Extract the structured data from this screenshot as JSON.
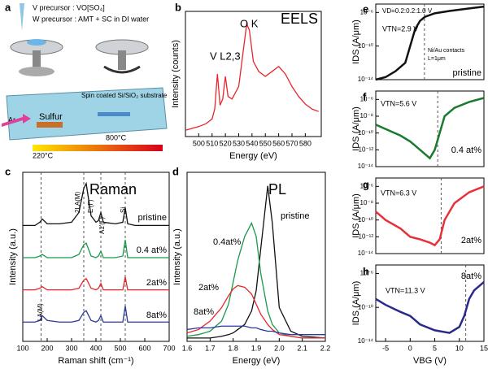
{
  "schematic": {
    "label": "a",
    "v_precursor": "V precursor : VO[SO₄]",
    "w_precursor": "W precursor : AMT + SC in DI water",
    "substrate": "Spin coated Si/SiO₂ substrate",
    "gas": "Ar",
    "sulfur": "Sulfur",
    "t_low": "220°C",
    "t_high": "800°C"
  },
  "chart_data": [
    {
      "type": "line",
      "label": "b",
      "title": "EELS",
      "xlabel": "Energy (eV)",
      "ylabel": "Intensity (counts)",
      "annotations": [
        "V L2,3",
        "O K"
      ],
      "x": [
        490,
        500,
        505,
        510,
        512,
        514,
        516,
        518,
        520,
        522,
        525,
        530,
        533,
        536,
        538,
        541,
        545,
        550,
        555,
        560,
        565,
        570,
        575,
        580,
        585,
        590
      ],
      "xlim": [
        490,
        592
      ],
      "xticks": [
        500,
        510,
        520,
        530,
        540,
        550,
        560,
        570,
        580
      ],
      "ylim": [
        0,
        100
      ],
      "series": [
        {
          "color": "#e8262b",
          "values": [
            5,
            8,
            10,
            14,
            22,
            50,
            25,
            30,
            48,
            32,
            30,
            40,
            65,
            90,
            85,
            60,
            52,
            48,
            52,
            56,
            50,
            40,
            32,
            26,
            22,
            20
          ]
        }
      ]
    },
    {
      "type": "line",
      "label": "c",
      "title": "Raman",
      "xlabel": "Raman shift (cm⁻¹)",
      "ylabel": "Intensity (a.u.)",
      "annotations": [
        "2LA(M)",
        "E'(Γ)",
        "A1'(Γ)",
        "Si",
        "LA(M)"
      ],
      "x": [
        100,
        150,
        170,
        180,
        200,
        250,
        300,
        330,
        350,
        360,
        380,
        400,
        410,
        420,
        430,
        480,
        510,
        520,
        530,
        560,
        600,
        650,
        700
      ],
      "xlim": [
        100,
        700
      ],
      "xticks": [
        100,
        200,
        300,
        400,
        500,
        600,
        700
      ],
      "ylim": [
        0,
        105
      ],
      "vlines": [
        175,
        350,
        420,
        520
      ],
      "series": [
        {
          "name": "pristine",
          "color": "#111111",
          "values": [
            72,
            72,
            74,
            76,
            73,
            73,
            74,
            80,
            95,
            98,
            78,
            74,
            75,
            80,
            74,
            73,
            74,
            83,
            73,
            72,
            72,
            72,
            72
          ]
        },
        {
          "name": "0.4 at%",
          "color": "#1a9a4a",
          "values": [
            52,
            52,
            53,
            54,
            52,
            52,
            52,
            54,
            60,
            61,
            53,
            52,
            53,
            56,
            52,
            52,
            53,
            63,
            52,
            52,
            52,
            52,
            52
          ]
        },
        {
          "name": "2at%",
          "color": "#e8262b",
          "values": [
            32,
            32,
            33,
            34,
            32,
            32,
            32,
            33,
            38,
            39,
            33,
            32,
            33,
            36,
            32,
            32,
            32,
            40,
            32,
            32,
            32,
            32,
            32
          ]
        },
        {
          "name": "8at%",
          "color": "#2a3a9c",
          "values": [
            12,
            12,
            13,
            16,
            13,
            12,
            12,
            13,
            18,
            19,
            13,
            12,
            13,
            16,
            12,
            12,
            12,
            22,
            12,
            12,
            12,
            12,
            12
          ]
        }
      ]
    },
    {
      "type": "line",
      "label": "d",
      "title": "PL",
      "xlabel": "Energy (eV)",
      "ylabel": "Intensity (a.u.)",
      "x": [
        1.6,
        1.65,
        1.7,
        1.75,
        1.78,
        1.8,
        1.82,
        1.85,
        1.88,
        1.9,
        1.92,
        1.95,
        1.97,
        2.0,
        2.05,
        2.1,
        2.2
      ],
      "xlim": [
        1.6,
        2.2
      ],
      "xticks": [
        1.6,
        1.7,
        1.8,
        1.9,
        {
          "value": 2,
          "label": "2.0"
        },
        2.1,
        2.2
      ],
      "ylim": [
        0,
        100
      ],
      "series": [
        {
          "name": "pristine",
          "color": "#111111",
          "values": [
            2,
            2,
            2,
            3,
            4,
            5,
            7,
            10,
            18,
            30,
            55,
            92,
            70,
            20,
            6,
            3,
            2
          ]
        },
        {
          "name": "0.4at%",
          "color": "#1a9a4a",
          "values": [
            3,
            4,
            6,
            12,
            22,
            35,
            48,
            62,
            70,
            62,
            40,
            18,
            10,
            5,
            3,
            2,
            2
          ]
        },
        {
          "name": "2at%",
          "color": "#e8262b",
          "values": [
            5,
            7,
            12,
            20,
            27,
            31,
            33,
            32,
            28,
            22,
            16,
            10,
            7,
            4,
            3,
            2,
            2
          ]
        },
        {
          "name": "8at%",
          "color": "#2a3a9c",
          "values": [
            7,
            8,
            8,
            9,
            9,
            9,
            9,
            9,
            8,
            8,
            7,
            6,
            6,
            5,
            4,
            4,
            4
          ]
        }
      ]
    },
    {
      "type": "line",
      "label": "e",
      "ylabel": "IDS (A/μm)",
      "log_y": true,
      "annotations": [
        "VD=0.2:0.2:1.0 V",
        "VTN=2.9 V",
        "Ni/Au contacts",
        "L=1μm"
      ],
      "x": [
        -7,
        -5,
        -3,
        -1,
        0,
        1,
        2,
        3,
        5,
        8,
        12,
        15
      ],
      "xlim": [
        -7,
        15
      ],
      "ylim": [
        1e-14,
        1e-05
      ],
      "vlines": [
        2.9
      ],
      "yticks": [
        {
          "value": 1e-14,
          "label": "10⁻¹⁴"
        },
        {
          "value": 1e-10,
          "label": "10⁻¹⁰"
        },
        {
          "value": 1e-06,
          "label": "10⁻⁶"
        }
      ],
      "series": [
        {
          "name": "pristine",
          "color": "#111111",
          "values": [
            1e-14,
            2e-14,
            1e-13,
            1e-12,
            1e-10,
            1e-08,
            1e-07,
            3e-07,
            8e-07,
            1.5e-06,
            3e-06,
            5e-06
          ]
        }
      ]
    },
    {
      "type": "line",
      "label": "f",
      "ylabel": "IDS (A/μm)",
      "log_y": true,
      "annotations": [
        "VTN=5.6 V"
      ],
      "x": [
        -7,
        -5,
        -2,
        0,
        2,
        4,
        5,
        6,
        7,
        9,
        12,
        15
      ],
      "xlim": [
        -7,
        15
      ],
      "ylim": [
        1e-14,
        1e-05
      ],
      "vlines": [
        5.6
      ],
      "yticks": [
        {
          "value": 1e-14,
          "label": "10⁻¹⁴"
        },
        {
          "value": 1e-12,
          "label": "10⁻¹²"
        },
        {
          "value": 1e-10,
          "label": "10⁻¹⁰"
        },
        {
          "value": 1e-08,
          "label": "10⁻⁸"
        },
        {
          "value": 1e-06,
          "label": "10⁻⁶"
        }
      ],
      "series": [
        {
          "name": "0.4 at%",
          "color": "#1a7a2e",
          "values": [
            1e-09,
            3e-10,
            5e-11,
            1e-11,
            1e-12,
            1e-13,
            1e-12,
            1e-10,
            1e-08,
            1e-07,
            5e-07,
            1.5e-06
          ]
        }
      ]
    },
    {
      "type": "line",
      "label": "g",
      "ylabel": "IDS (A/μm)",
      "log_y": true,
      "annotations": [
        "VTN=6.3 V"
      ],
      "x": [
        -7,
        -5,
        -2,
        0,
        2,
        4,
        5,
        6,
        7,
        9,
        12,
        15
      ],
      "xlim": [
        -7,
        15
      ],
      "ylim": [
        1e-14,
        1e-05
      ],
      "vlines": [
        6.3
      ],
      "yticks": [
        {
          "value": 1e-14,
          "label": "10⁻¹⁴"
        },
        {
          "value": 1e-12,
          "label": "10⁻¹²"
        },
        {
          "value": 1e-10,
          "label": "10⁻¹⁰"
        },
        {
          "value": 1e-08,
          "label": "10⁻⁸"
        },
        {
          "value": 1e-06,
          "label": "10⁻⁶"
        }
      ],
      "series": [
        {
          "name": "2at%",
          "color": "#e8303a",
          "values": [
            1e-09,
            1e-10,
            1e-11,
            1e-12,
            5e-13,
            2e-13,
            1e-13,
            5e-13,
            1e-10,
            1e-08,
            2e-07,
            1e-06
          ]
        }
      ]
    },
    {
      "type": "line",
      "label": "h",
      "xlabel": "VBG (V)",
      "ylabel": "IDS (A/μm)",
      "log_y": true,
      "annotations": [
        "VTN=11.3 V"
      ],
      "x": [
        -7,
        -5,
        -2,
        0,
        2,
        5,
        8,
        10,
        11,
        12,
        13,
        15
      ],
      "xlim": [
        -7,
        15
      ],
      "xticks": [
        -5,
        0,
        5,
        10,
        15
      ],
      "ylim": [
        1e-14,
        1e-05
      ],
      "vlines": [
        11.3
      ],
      "yticks": [
        {
          "value": 1e-14,
          "label": "10⁻¹⁴"
        },
        {
          "value": 1e-10,
          "label": "10⁻¹⁰"
        },
        {
          "value": 1e-06,
          "label": "10⁻⁶"
        }
      ],
      "series": [
        {
          "name": "8at%",
          "color": "#2a2a8c",
          "values": [
            1e-09,
            2e-10,
            3e-11,
            1e-11,
            1e-12,
            2e-13,
            1e-13,
            5e-13,
            1e-11,
            1e-09,
            1e-08,
            1e-07
          ]
        }
      ]
    }
  ]
}
